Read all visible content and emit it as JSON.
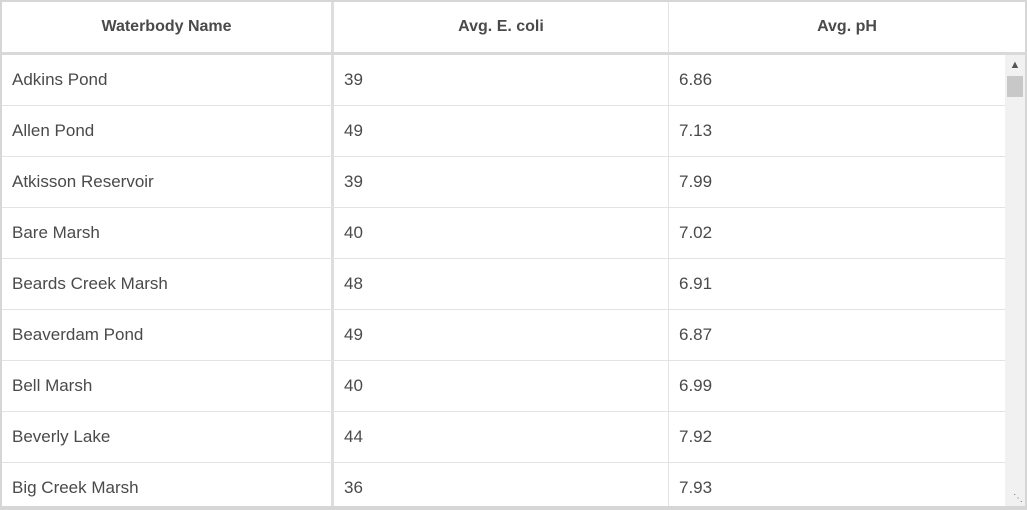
{
  "columns": [
    "Waterbody Name",
    "Avg. E. coli",
    "Avg. pH"
  ],
  "rows": [
    [
      "Adkins Pond",
      "39",
      "6.86"
    ],
    [
      "Allen Pond",
      "49",
      "7.13"
    ],
    [
      "Atkisson Reservoir",
      "39",
      "7.99"
    ],
    [
      "Bare Marsh",
      "40",
      "7.02"
    ],
    [
      "Beards Creek Marsh",
      "48",
      "6.91"
    ],
    [
      "Beaverdam Pond",
      "49",
      "6.87"
    ],
    [
      "Bell Marsh",
      "40",
      "6.99"
    ],
    [
      "Beverly Lake",
      "44",
      "7.92"
    ],
    [
      "Big Creek Marsh",
      "36",
      "7.93"
    ]
  ],
  "icons": {
    "scroll_up": "chevron-up-icon",
    "resize": "resize-grip-icon"
  }
}
